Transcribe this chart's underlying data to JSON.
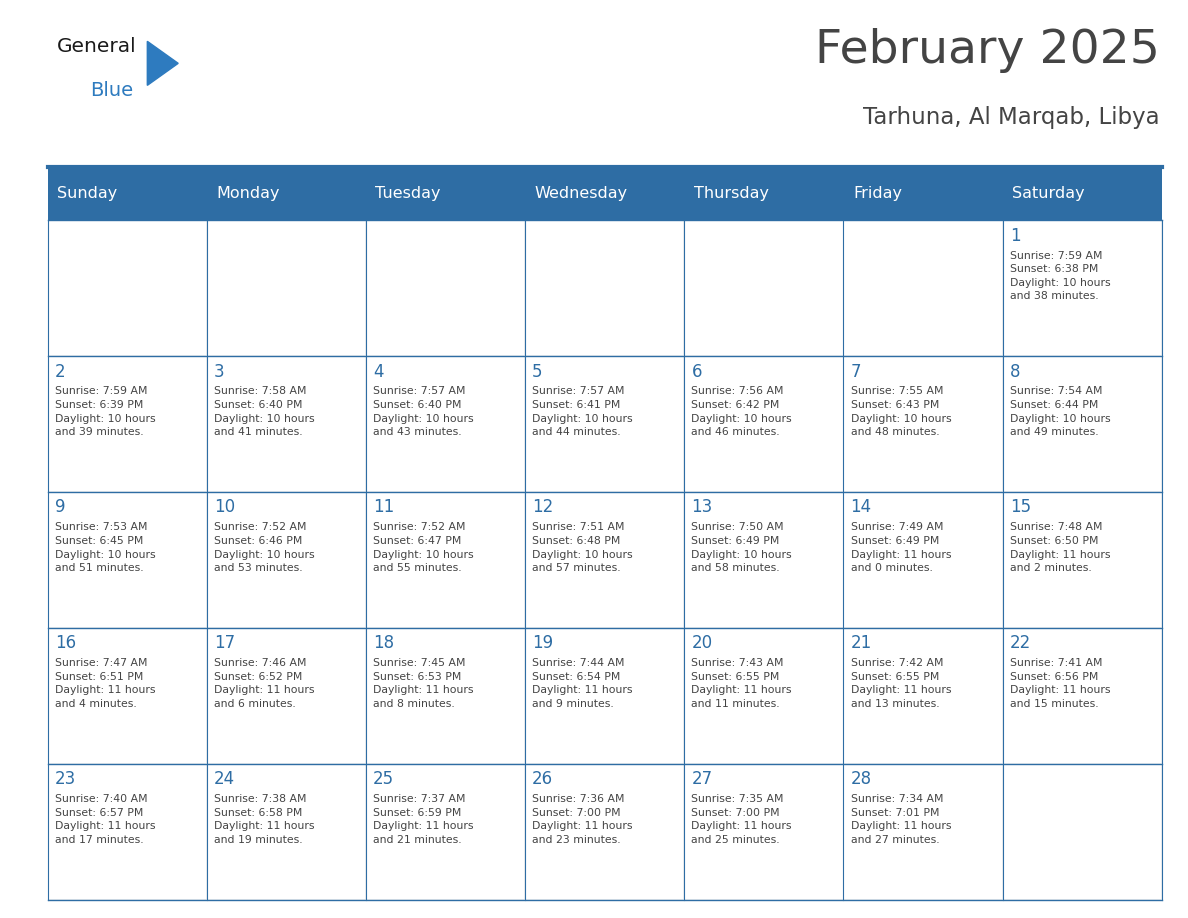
{
  "title": "February 2025",
  "subtitle": "Tarhuna, Al Marqab, Libya",
  "header_color": "#2E6DA4",
  "header_text_color": "#FFFFFF",
  "day_names": [
    "Sunday",
    "Monday",
    "Tuesday",
    "Wednesday",
    "Thursday",
    "Friday",
    "Saturday"
  ],
  "bg_color": "#FFFFFF",
  "cell_bg_white": "#FFFFFF",
  "line_color": "#2E6DA4",
  "day_num_color": "#2E6DA4",
  "text_color": "#444444",
  "logo_text_color": "#1a1a1a",
  "logo_blue_color": "#2E7BBF",
  "calendar_data": [
    [
      null,
      null,
      null,
      null,
      null,
      null,
      {
        "day": 1,
        "sunrise": "7:59 AM",
        "sunset": "6:38 PM",
        "daylight": "10 hours\nand 38 minutes."
      }
    ],
    [
      {
        "day": 2,
        "sunrise": "7:59 AM",
        "sunset": "6:39 PM",
        "daylight": "10 hours\nand 39 minutes."
      },
      {
        "day": 3,
        "sunrise": "7:58 AM",
        "sunset": "6:40 PM",
        "daylight": "10 hours\nand 41 minutes."
      },
      {
        "day": 4,
        "sunrise": "7:57 AM",
        "sunset": "6:40 PM",
        "daylight": "10 hours\nand 43 minutes."
      },
      {
        "day": 5,
        "sunrise": "7:57 AM",
        "sunset": "6:41 PM",
        "daylight": "10 hours\nand 44 minutes."
      },
      {
        "day": 6,
        "sunrise": "7:56 AM",
        "sunset": "6:42 PM",
        "daylight": "10 hours\nand 46 minutes."
      },
      {
        "day": 7,
        "sunrise": "7:55 AM",
        "sunset": "6:43 PM",
        "daylight": "10 hours\nand 48 minutes."
      },
      {
        "day": 8,
        "sunrise": "7:54 AM",
        "sunset": "6:44 PM",
        "daylight": "10 hours\nand 49 minutes."
      }
    ],
    [
      {
        "day": 9,
        "sunrise": "7:53 AM",
        "sunset": "6:45 PM",
        "daylight": "10 hours\nand 51 minutes."
      },
      {
        "day": 10,
        "sunrise": "7:52 AM",
        "sunset": "6:46 PM",
        "daylight": "10 hours\nand 53 minutes."
      },
      {
        "day": 11,
        "sunrise": "7:52 AM",
        "sunset": "6:47 PM",
        "daylight": "10 hours\nand 55 minutes."
      },
      {
        "day": 12,
        "sunrise": "7:51 AM",
        "sunset": "6:48 PM",
        "daylight": "10 hours\nand 57 minutes."
      },
      {
        "day": 13,
        "sunrise": "7:50 AM",
        "sunset": "6:49 PM",
        "daylight": "10 hours\nand 58 minutes."
      },
      {
        "day": 14,
        "sunrise": "7:49 AM",
        "sunset": "6:49 PM",
        "daylight": "11 hours\nand 0 minutes."
      },
      {
        "day": 15,
        "sunrise": "7:48 AM",
        "sunset": "6:50 PM",
        "daylight": "11 hours\nand 2 minutes."
      }
    ],
    [
      {
        "day": 16,
        "sunrise": "7:47 AM",
        "sunset": "6:51 PM",
        "daylight": "11 hours\nand 4 minutes."
      },
      {
        "day": 17,
        "sunrise": "7:46 AM",
        "sunset": "6:52 PM",
        "daylight": "11 hours\nand 6 minutes."
      },
      {
        "day": 18,
        "sunrise": "7:45 AM",
        "sunset": "6:53 PM",
        "daylight": "11 hours\nand 8 minutes."
      },
      {
        "day": 19,
        "sunrise": "7:44 AM",
        "sunset": "6:54 PM",
        "daylight": "11 hours\nand 9 minutes."
      },
      {
        "day": 20,
        "sunrise": "7:43 AM",
        "sunset": "6:55 PM",
        "daylight": "11 hours\nand 11 minutes."
      },
      {
        "day": 21,
        "sunrise": "7:42 AM",
        "sunset": "6:55 PM",
        "daylight": "11 hours\nand 13 minutes."
      },
      {
        "day": 22,
        "sunrise": "7:41 AM",
        "sunset": "6:56 PM",
        "daylight": "11 hours\nand 15 minutes."
      }
    ],
    [
      {
        "day": 23,
        "sunrise": "7:40 AM",
        "sunset": "6:57 PM",
        "daylight": "11 hours\nand 17 minutes."
      },
      {
        "day": 24,
        "sunrise": "7:38 AM",
        "sunset": "6:58 PM",
        "daylight": "11 hours\nand 19 minutes."
      },
      {
        "day": 25,
        "sunrise": "7:37 AM",
        "sunset": "6:59 PM",
        "daylight": "11 hours\nand 21 minutes."
      },
      {
        "day": 26,
        "sunrise": "7:36 AM",
        "sunset": "7:00 PM",
        "daylight": "11 hours\nand 23 minutes."
      },
      {
        "day": 27,
        "sunrise": "7:35 AM",
        "sunset": "7:00 PM",
        "daylight": "11 hours\nand 25 minutes."
      },
      {
        "day": 28,
        "sunrise": "7:34 AM",
        "sunset": "7:01 PM",
        "daylight": "11 hours\nand 27 minutes."
      },
      null
    ]
  ]
}
